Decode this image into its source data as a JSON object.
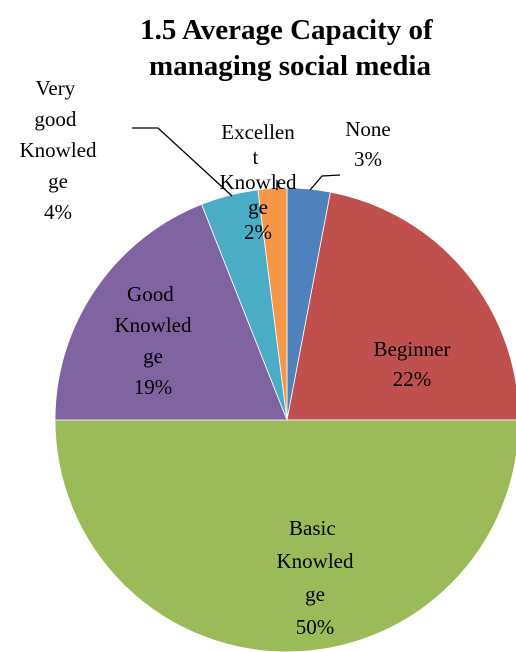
{
  "chart_data": {
    "type": "pie",
    "title": "1.5 Average Capacity of managing social media",
    "categories": [
      "None",
      "Beginner",
      "Basic Knowledge",
      "Good Knowledge",
      "Very good Knowledge",
      "Excellent Knowledge"
    ],
    "values": [
      3,
      22,
      50,
      19,
      4,
      2
    ],
    "value_labels": [
      "3%",
      "22%",
      "50%",
      "19%",
      "4%",
      "2%"
    ],
    "colors": [
      "#4F81BD",
      "#C0504D",
      "#9BBB59",
      "#8064A2",
      "#4BACC6",
      "#F79646"
    ]
  }
}
